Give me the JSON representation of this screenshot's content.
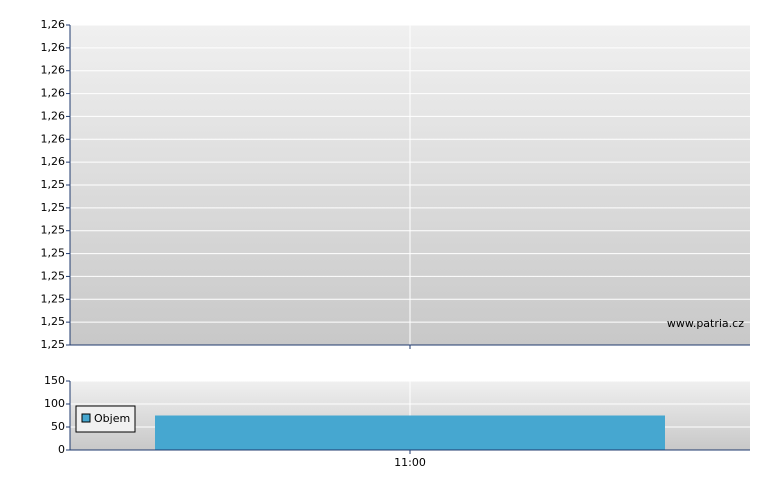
{
  "chart_data": [
    {
      "type": "line",
      "annotation": "www.patria.cz",
      "ylim": [
        1.2475,
        1.2615
      ],
      "yticks": [
        {
          "value": 1.2475,
          "label": "1,25"
        },
        {
          "value": 1.2485,
          "label": "1,25"
        },
        {
          "value": 1.2495,
          "label": "1,25"
        },
        {
          "value": 1.2505,
          "label": "1,25"
        },
        {
          "value": 1.2515,
          "label": "1,25"
        },
        {
          "value": 1.2525,
          "label": "1,25"
        },
        {
          "value": 1.2535,
          "label": "1,25"
        },
        {
          "value": 1.2545,
          "label": "1,25"
        },
        {
          "value": 1.2555,
          "label": "1,26"
        },
        {
          "value": 1.2565,
          "label": "1,26"
        },
        {
          "value": 1.2575,
          "label": "1,26"
        },
        {
          "value": 1.2585,
          "label": "1,26"
        },
        {
          "value": 1.2595,
          "label": "1,26"
        },
        {
          "value": 1.2605,
          "label": "1,26"
        },
        {
          "value": 1.2615,
          "label": "1,26"
        }
      ],
      "grid": true
    },
    {
      "type": "bar",
      "categories": [
        "11:00"
      ],
      "series": [
        {
          "name": "Objem",
          "color": "#46a7d0",
          "values": [
            75
          ]
        }
      ],
      "ylim": [
        0,
        150
      ],
      "yticks": [
        0,
        50,
        100,
        150
      ],
      "grid": true,
      "legend": "left"
    }
  ]
}
